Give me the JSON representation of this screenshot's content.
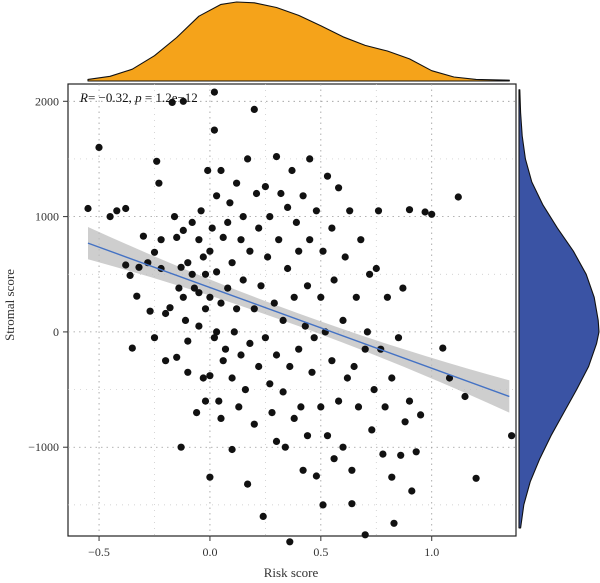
{
  "chart_data": {
    "type": "scatter",
    "title": "",
    "xlabel": "Risk score",
    "ylabel": "Stromal score",
    "annotation": {
      "r_symbol": "R",
      "r_value": "= −0.32, ",
      "p_symbol": "p",
      "p_value": " = 1.2e−12"
    },
    "xlim": [
      -0.64,
      1.38
    ],
    "ylim": [
      -1770,
      2150
    ],
    "x_ticks": [
      -0.5,
      0.0,
      0.5,
      1.0
    ],
    "x_tick_labels": [
      "−0.5",
      "0.0",
      "0.5",
      "1.0"
    ],
    "y_ticks": [
      -1000,
      0,
      1000,
      2000
    ],
    "y_tick_labels": [
      "−1000",
      "0",
      "1000",
      "2000"
    ],
    "grid": true,
    "grid_style": "dotted",
    "regression": {
      "x0": -0.55,
      "y0": 770,
      "x1": 1.35,
      "y1": -560,
      "ci_half_width_ends": 140,
      "ci_half_width_center": 55,
      "line_color": "#4472c4",
      "band_color": "#bdbdbd"
    },
    "point_color": "#111111",
    "marginals": {
      "top_color": "#f5a31a",
      "right_color": "#3a53a4",
      "top_density": [
        [
          -0.55,
          0.02
        ],
        [
          -0.45,
          0.06
        ],
        [
          -0.35,
          0.15
        ],
        [
          -0.25,
          0.32
        ],
        [
          -0.15,
          0.55
        ],
        [
          -0.05,
          0.82
        ],
        [
          0.05,
          0.97
        ],
        [
          0.12,
          1.0
        ],
        [
          0.2,
          0.99
        ],
        [
          0.3,
          0.93
        ],
        [
          0.4,
          0.83
        ],
        [
          0.5,
          0.7
        ],
        [
          0.6,
          0.56
        ],
        [
          0.7,
          0.45
        ],
        [
          0.8,
          0.38
        ],
        [
          0.9,
          0.28
        ],
        [
          1.0,
          0.13
        ],
        [
          1.1,
          0.05
        ],
        [
          1.2,
          0.02
        ],
        [
          1.35,
          0.01
        ]
      ],
      "right_density": [
        [
          -1700,
          0.02
        ],
        [
          -1500,
          0.06
        ],
        [
          -1300,
          0.14
        ],
        [
          -1100,
          0.26
        ],
        [
          -900,
          0.4
        ],
        [
          -700,
          0.56
        ],
        [
          -500,
          0.72
        ],
        [
          -300,
          0.87
        ],
        [
          -100,
          0.97
        ],
        [
          0,
          1.0
        ],
        [
          100,
          0.99
        ],
        [
          300,
          0.94
        ],
        [
          500,
          0.84
        ],
        [
          700,
          0.68
        ],
        [
          900,
          0.48
        ],
        [
          1100,
          0.3
        ],
        [
          1300,
          0.16
        ],
        [
          1500,
          0.08
        ],
        [
          1700,
          0.04
        ],
        [
          1900,
          0.02
        ],
        [
          2100,
          0.01
        ]
      ]
    },
    "points": [
      [
        -0.55,
        1070
      ],
      [
        -0.5,
        1600
      ],
      [
        -0.45,
        1000
      ],
      [
        -0.42,
        1050
      ],
      [
        -0.38,
        1070
      ],
      [
        -0.38,
        580
      ],
      [
        -0.36,
        490
      ],
      [
        -0.35,
        -140
      ],
      [
        -0.33,
        310
      ],
      [
        -0.32,
        560
      ],
      [
        -0.3,
        830
      ],
      [
        -0.28,
        600
      ],
      [
        -0.27,
        180
      ],
      [
        -0.25,
        690
      ],
      [
        -0.25,
        -50
      ],
      [
        -0.24,
        1480
      ],
      [
        -0.23,
        1290
      ],
      [
        -0.22,
        800
      ],
      [
        -0.22,
        550
      ],
      [
        -0.2,
        -250
      ],
      [
        -0.2,
        160
      ],
      [
        -0.18,
        210
      ],
      [
        -0.17,
        1990
      ],
      [
        -0.16,
        1000
      ],
      [
        -0.15,
        -220
      ],
      [
        -0.15,
        820
      ],
      [
        -0.14,
        380
      ],
      [
        -0.13,
        560
      ],
      [
        -0.13,
        -1000
      ],
      [
        -0.12,
        2000
      ],
      [
        -0.12,
        880
      ],
      [
        -0.12,
        300
      ],
      [
        -0.11,
        100
      ],
      [
        -0.1,
        -80
      ],
      [
        -0.1,
        -350
      ],
      [
        -0.1,
        600
      ],
      [
        -0.08,
        950
      ],
      [
        -0.08,
        500
      ],
      [
        -0.07,
        380
      ],
      [
        -0.06,
        -700
      ],
      [
        -0.05,
        800
      ],
      [
        -0.05,
        340
      ],
      [
        -0.05,
        50
      ],
      [
        -0.04,
        1050
      ],
      [
        -0.03,
        650
      ],
      [
        -0.03,
        -400
      ],
      [
        -0.02,
        -600
      ],
      [
        -0.02,
        500
      ],
      [
        -0.02,
        200
      ],
      [
        -0.01,
        1400
      ],
      [
        0.0,
        -1260
      ],
      [
        0.0,
        -380
      ],
      [
        0.0,
        700
      ],
      [
        0.0,
        300
      ],
      [
        0.01,
        900
      ],
      [
        0.02,
        -50
      ],
      [
        0.02,
        1750
      ],
      [
        0.02,
        2080
      ],
      [
        0.03,
        1180
      ],
      [
        0.03,
        520
      ],
      [
        0.03,
        0
      ],
      [
        0.04,
        -600
      ],
      [
        0.05,
        -750
      ],
      [
        0.05,
        250
      ],
      [
        0.05,
        1400
      ],
      [
        0.06,
        820
      ],
      [
        0.06,
        -250
      ],
      [
        0.07,
        -150
      ],
      [
        0.08,
        950
      ],
      [
        0.08,
        380
      ],
      [
        0.09,
        1120
      ],
      [
        0.1,
        -1020
      ],
      [
        0.1,
        -400
      ],
      [
        0.1,
        600
      ],
      [
        0.11,
        0
      ],
      [
        0.12,
        1290
      ],
      [
        0.12,
        200
      ],
      [
        0.13,
        -650
      ],
      [
        0.14,
        800
      ],
      [
        0.14,
        -200
      ],
      [
        0.15,
        1000
      ],
      [
        0.15,
        450
      ],
      [
        0.16,
        -500
      ],
      [
        0.17,
        -1320
      ],
      [
        0.17,
        1500
      ],
      [
        0.18,
        -100
      ],
      [
        0.18,
        700
      ],
      [
        0.2,
        1930
      ],
      [
        0.2,
        200
      ],
      [
        0.2,
        -800
      ],
      [
        0.21,
        1200
      ],
      [
        0.22,
        -300
      ],
      [
        0.22,
        900
      ],
      [
        0.23,
        400
      ],
      [
        0.24,
        -1600
      ],
      [
        0.25,
        1260
      ],
      [
        0.25,
        -50
      ],
      [
        0.26,
        650
      ],
      [
        0.27,
        -450
      ],
      [
        0.27,
        1000
      ],
      [
        0.28,
        -700
      ],
      [
        0.29,
        250
      ],
      [
        0.3,
        1520
      ],
      [
        0.3,
        -950
      ],
      [
        0.3,
        -200
      ],
      [
        0.31,
        800
      ],
      [
        0.32,
        1200
      ],
      [
        0.33,
        100
      ],
      [
        0.33,
        -520
      ],
      [
        0.34,
        -1000
      ],
      [
        0.35,
        550
      ],
      [
        0.35,
        1080
      ],
      [
        0.36,
        -300
      ],
      [
        0.36,
        -1820
      ],
      [
        0.37,
        1400
      ],
      [
        0.38,
        -750
      ],
      [
        0.38,
        300
      ],
      [
        0.39,
        950
      ],
      [
        0.4,
        -150
      ],
      [
        0.4,
        700
      ],
      [
        0.41,
        -650
      ],
      [
        0.42,
        1180
      ],
      [
        0.42,
        -1200
      ],
      [
        0.43,
        50
      ],
      [
        0.44,
        400
      ],
      [
        0.44,
        -900
      ],
      [
        0.45,
        1500
      ],
      [
        0.45,
        800
      ],
      [
        0.46,
        -350
      ],
      [
        0.47,
        -50
      ],
      [
        0.48,
        1050
      ],
      [
        0.48,
        -1250
      ],
      [
        0.5,
        300
      ],
      [
        0.5,
        -650
      ],
      [
        0.51,
        700
      ],
      [
        0.51,
        -1500
      ],
      [
        0.52,
        0
      ],
      [
        0.53,
        -900
      ],
      [
        0.53,
        1350
      ],
      [
        0.55,
        900
      ],
      [
        0.55,
        -250
      ],
      [
        0.56,
        450
      ],
      [
        0.56,
        -1100
      ],
      [
        0.58,
        1250
      ],
      [
        0.58,
        -600
      ],
      [
        0.6,
        100
      ],
      [
        0.6,
        -1000
      ],
      [
        0.61,
        650
      ],
      [
        0.62,
        -400
      ],
      [
        0.63,
        1050
      ],
      [
        0.64,
        -1200
      ],
      [
        0.64,
        -1490
      ],
      [
        0.65,
        -300
      ],
      [
        0.66,
        300
      ],
      [
        0.67,
        -650
      ],
      [
        0.68,
        800
      ],
      [
        0.7,
        -150
      ],
      [
        0.7,
        -1760
      ],
      [
        0.71,
        0
      ],
      [
        0.72,
        500
      ],
      [
        0.73,
        -850
      ],
      [
        0.74,
        -500
      ],
      [
        0.75,
        550
      ],
      [
        0.76,
        1050
      ],
      [
        0.77,
        -150
      ],
      [
        0.78,
        -1060
      ],
      [
        0.79,
        -650
      ],
      [
        0.8,
        300
      ],
      [
        0.82,
        -400
      ],
      [
        0.82,
        -1260
      ],
      [
        0.83,
        -1660
      ],
      [
        0.85,
        -50
      ],
      [
        0.86,
        -1070
      ],
      [
        0.87,
        380
      ],
      [
        0.88,
        -780
      ],
      [
        0.9,
        -600
      ],
      [
        0.9,
        1060
      ],
      [
        0.91,
        -1380
      ],
      [
        0.93,
        -1040
      ],
      [
        0.95,
        -720
      ],
      [
        0.97,
        1040
      ],
      [
        1.0,
        1020
      ],
      [
        1.05,
        -140
      ],
      [
        1.08,
        -400
      ],
      [
        1.12,
        1170
      ],
      [
        1.15,
        -560
      ],
      [
        1.2,
        -1270
      ],
      [
        1.36,
        -900
      ]
    ]
  }
}
